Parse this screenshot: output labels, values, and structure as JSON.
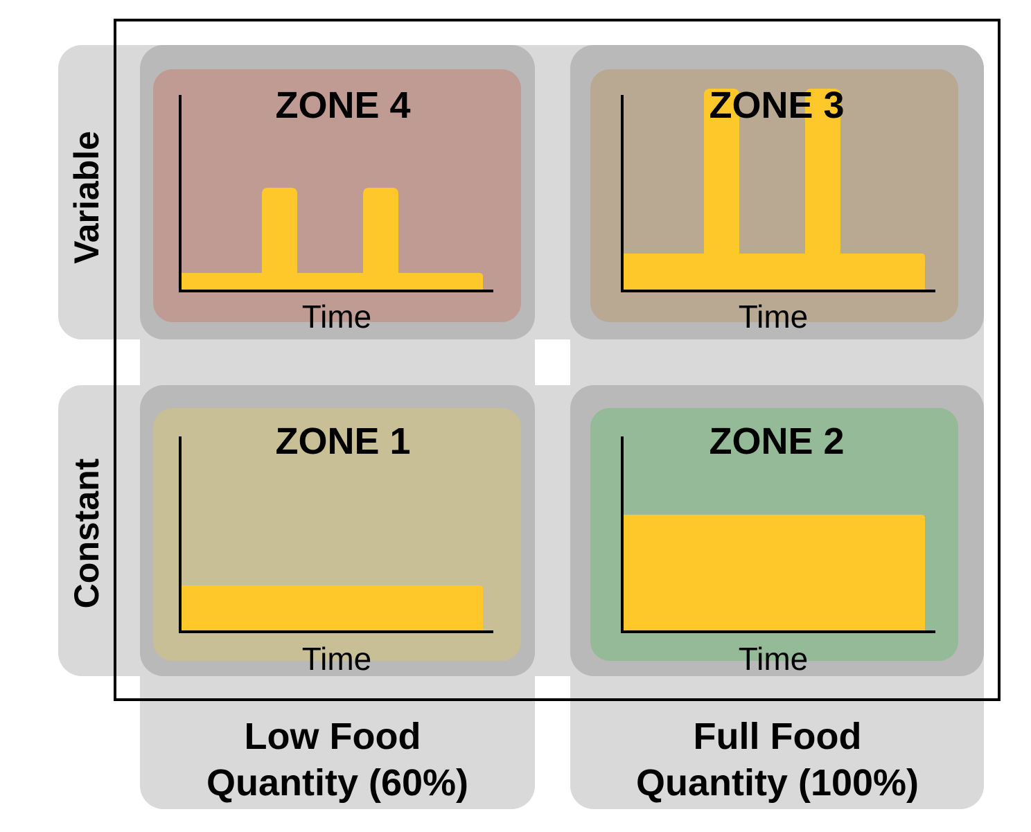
{
  "rows": [
    {
      "id": "variable",
      "label": "Variable"
    },
    {
      "id": "constant",
      "label": "Constant"
    }
  ],
  "columns": [
    {
      "id": "low",
      "line1": "Low Food",
      "line2": "Quantity (60%)"
    },
    {
      "id": "full",
      "line1": "Full Food",
      "line2": "Quantity (100%)"
    }
  ],
  "zones": [
    {
      "id": "zone4",
      "title": "ZONE 4",
      "row": "variable",
      "col": "low",
      "bg": "#bf9b93",
      "axis_label": "Time"
    },
    {
      "id": "zone3",
      "title": "ZONE 3",
      "row": "variable",
      "col": "full",
      "bg": "#b9a993",
      "axis_label": "Time"
    },
    {
      "id": "zone1",
      "title": "ZONE 1",
      "row": "constant",
      "col": "low",
      "bg": "#c8bf96",
      "axis_label": "Time"
    },
    {
      "id": "zone2",
      "title": "ZONE 2",
      "row": "constant",
      "col": "full",
      "bg": "#95ba98",
      "axis_label": "Time"
    }
  ],
  "colors": {
    "band_light": "#d9d9d9",
    "band_overlap": "#b9b9b9",
    "food_bar": "#fec82a",
    "frame": "#000000"
  }
}
